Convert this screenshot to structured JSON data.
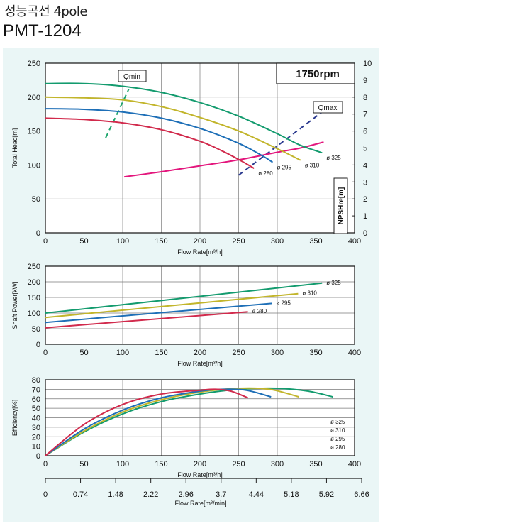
{
  "header": {
    "title_ko": "성능곡선 4pole",
    "model": "PMT-1204"
  },
  "colors": {
    "p325": "#139b6e",
    "p310": "#c2b52b",
    "p295": "#1e6fb7",
    "p280": "#d12a4c",
    "npsh": "#e3157c",
    "qline": "#1fa66e",
    "qmaxline": "#2b3a8f",
    "panel": "#eaf6f6"
  },
  "chart_data": [
    {
      "type": "line",
      "ylabel": "Total Head[m]",
      "xlabel": "Flow Rate[m³/h]",
      "xlim": [
        0,
        400
      ],
      "ylim": [
        0,
        250
      ],
      "x_ticks": [
        "0",
        "50",
        "100",
        "150",
        "200",
        "250",
        "300",
        "350",
        "400"
      ],
      "y_ticks": [
        "0",
        "50",
        "100",
        "150",
        "200",
        "250"
      ],
      "y2label": "NPSHre[m]",
      "y2lim": [
        0,
        10
      ],
      "y2_ticks": [
        "0",
        "1",
        "2",
        "3",
        "4",
        "5",
        "6",
        "7",
        "8",
        "9",
        "10"
      ],
      "speed_label": "1750rpm",
      "annotations": {
        "qmin": "Qmin",
        "qmax": "Qmax"
      },
      "series": [
        {
          "name": "ø 325",
          "x": [
            0,
            50,
            100,
            150,
            200,
            250,
            300,
            330,
            358
          ],
          "y": [
            220,
            220,
            216,
            207,
            192,
            172,
            146,
            129,
            118
          ]
        },
        {
          "name": "ø 310",
          "x": [
            0,
            50,
            100,
            150,
            200,
            250,
            300,
            330
          ],
          "y": [
            200,
            199,
            196,
            186,
            170,
            150,
            124,
            107
          ]
        },
        {
          "name": "ø 295",
          "x": [
            0,
            50,
            100,
            150,
            200,
            250,
            280,
            294
          ],
          "y": [
            183,
            182,
            178,
            169,
            154,
            132,
            114,
            104
          ]
        },
        {
          "name": "ø 280",
          "x": [
            0,
            50,
            100,
            150,
            200,
            230,
            255,
            270
          ],
          "y": [
            169,
            167,
            162,
            152,
            135,
            120,
            105,
            95
          ]
        }
      ],
      "npsh": {
        "x": [
          102,
          150,
          200,
          250,
          300,
          330,
          360
        ],
        "y": [
          3.3,
          3.6,
          3.95,
          4.3,
          4.75,
          5.0,
          5.35
        ]
      },
      "qmin_line": {
        "x": [
          78,
          108
        ],
        "y": [
          140,
          212
        ]
      },
      "qmax_line": {
        "x": [
          250,
          358
        ],
        "y": [
          85,
          178
        ]
      }
    },
    {
      "type": "line",
      "ylabel": "Shaft Power[kW]",
      "xlabel": "Flow Rate[m³/h]",
      "xlim": [
        0,
        400
      ],
      "ylim": [
        0,
        250
      ],
      "x_ticks": [
        "0",
        "50",
        "100",
        "150",
        "200",
        "250",
        "300",
        "350",
        "400"
      ],
      "y_ticks": [
        "0",
        "50",
        "100",
        "150",
        "200",
        "250"
      ],
      "series": [
        {
          "name": "ø 325",
          "x": [
            0,
            358
          ],
          "y": [
            100,
            196
          ]
        },
        {
          "name": "ø 310",
          "x": [
            0,
            327
          ],
          "y": [
            86,
            162
          ]
        },
        {
          "name": "ø 295",
          "x": [
            0,
            293
          ],
          "y": [
            70,
            131
          ]
        },
        {
          "name": "ø 280",
          "x": [
            0,
            262
          ],
          "y": [
            53,
            104
          ]
        }
      ]
    },
    {
      "type": "line",
      "ylabel": "Efficiency[%]",
      "xlabel": "Flow Rate[m³/h]",
      "x2label": "Flow Rate[m³/min]",
      "xlim": [
        0,
        400
      ],
      "ylim": [
        0,
        80
      ],
      "x_ticks": [
        "0",
        "50",
        "100",
        "150",
        "200",
        "250",
        "300",
        "350",
        "400"
      ],
      "y_ticks": [
        "0",
        "10",
        "20",
        "30",
        "40",
        "50",
        "60",
        "70",
        "80"
      ],
      "x2_ticks": [
        "0",
        "0.74",
        "1.48",
        "2.22",
        "2.96",
        "3.7",
        "4.44",
        "5.18",
        "5.92",
        "6.66"
      ],
      "series": [
        {
          "name": "ø 325",
          "x": [
            0,
            50,
            100,
            150,
            200,
            250,
            300,
            340,
            372
          ],
          "y": [
            0,
            25,
            44,
            57,
            65,
            70,
            71,
            68,
            62
          ]
        },
        {
          "name": "ø 310",
          "x": [
            0,
            50,
            100,
            150,
            200,
            250,
            290,
            328
          ],
          "y": [
            0,
            26,
            46,
            59,
            67,
            71,
            70,
            62
          ]
        },
        {
          "name": "ø 295",
          "x": [
            0,
            50,
            100,
            150,
            200,
            230,
            260,
            292
          ],
          "y": [
            0,
            28,
            48,
            61,
            68,
            70,
            69,
            62
          ]
        },
        {
          "name": "ø 280",
          "x": [
            0,
            50,
            100,
            150,
            200,
            220,
            240,
            262
          ],
          "y": [
            0,
            33,
            54,
            65,
            69,
            70,
            68,
            61
          ]
        }
      ],
      "legend_labels": [
        "ø 325",
        "ø 310",
        "ø 295",
        "ø 280"
      ]
    }
  ]
}
